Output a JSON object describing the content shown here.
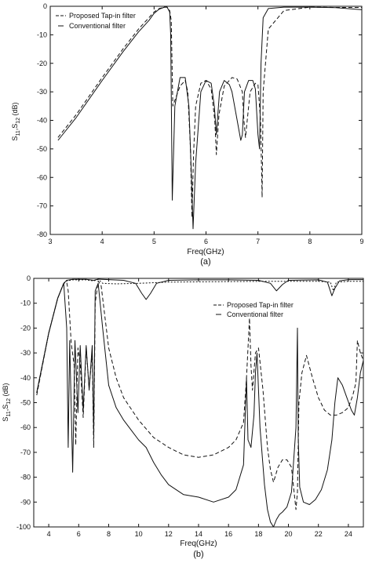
{
  "chart_data": [
    {
      "type": "line",
      "caption": "(a)",
      "xlabel": "Freq(GHz)",
      "ylabel_main": "S",
      "ylabel_sub1": "11",
      "ylabel_sep": ",S",
      "ylabel_sub2": "12",
      "ylabel_unit": " (dB)",
      "xlim": [
        3,
        9
      ],
      "ylim": [
        -80,
        0
      ],
      "xticks": [
        3,
        4,
        5,
        6,
        7,
        8,
        9
      ],
      "yticks": [
        0,
        -10,
        -20,
        -30,
        -40,
        -50,
        -60,
        -70,
        -80
      ],
      "legend_position": "top-left",
      "series": [
        {
          "name": "Proposed Tap-in filter",
          "style": "dashed",
          "x": [
            3.15,
            3.5,
            4.0,
            4.4,
            4.7,
            4.9,
            5.0,
            5.1,
            5.2,
            5.25,
            5.3,
            5.33,
            5.36,
            5.4,
            5.5,
            5.6,
            5.65,
            5.7,
            5.73,
            5.76,
            5.8,
            5.9,
            6.0,
            6.1,
            6.17,
            6.2,
            6.25,
            6.35,
            6.5,
            6.6,
            6.7,
            6.73,
            6.76,
            6.85,
            6.95,
            7.0,
            7.05,
            7.08,
            7.1,
            7.2,
            7.5,
            8.0,
            8.5,
            9.0
          ],
          "y": [
            -46,
            -38,
            -25,
            -15,
            -8,
            -4,
            -2,
            -0.8,
            -0.3,
            -0.3,
            -1.5,
            -5,
            -35,
            -33,
            -28,
            -26,
            -30,
            -50,
            -74,
            -52,
            -35,
            -27,
            -26,
            -29,
            -40,
            -52,
            -38,
            -28,
            -25,
            -25.5,
            -30,
            -40,
            -46,
            -30,
            -27,
            -27.5,
            -40,
            -67,
            -30,
            -8,
            -1.5,
            -0.3,
            -0.4,
            -0.4
          ]
        },
        {
          "name": "Conventional filter",
          "style": "solid",
          "x": [
            3.15,
            3.5,
            4.0,
            4.4,
            4.7,
            4.9,
            5.0,
            5.1,
            5.2,
            5.25,
            5.3,
            5.32,
            5.35,
            5.4,
            5.5,
            5.6,
            5.67,
            5.72,
            5.75,
            5.8,
            5.9,
            6.0,
            6.1,
            6.16,
            6.2,
            6.26,
            6.35,
            6.45,
            6.5,
            6.6,
            6.67,
            6.7,
            6.74,
            6.82,
            6.9,
            6.95,
            7.0,
            7.03,
            7.06,
            7.1,
            7.2,
            7.5,
            8.0,
            8.5,
            9.0
          ],
          "y": [
            -47,
            -39,
            -26,
            -16,
            -9,
            -5,
            -2.5,
            -1,
            -0.3,
            -0.3,
            -2,
            -10,
            -68,
            -35,
            -25,
            -25,
            -35,
            -60,
            -78,
            -55,
            -30,
            -26,
            -27,
            -35,
            -45,
            -30,
            -26,
            -27.5,
            -30,
            -40,
            -47,
            -45,
            -30,
            -26,
            -26,
            -29,
            -45,
            -50,
            -20,
            -4,
            -0.8,
            -0.3,
            -0.3,
            -0.5,
            -1.2
          ]
        }
      ]
    },
    {
      "type": "line",
      "caption": "(b)",
      "xlabel": "Freq(GHz)",
      "ylabel_main": "S",
      "ylabel_sub1": "11",
      "ylabel_sep": ",S",
      "ylabel_sub2": "12",
      "ylabel_unit": " (dB)",
      "xlim": [
        3,
        25
      ],
      "ylim": [
        -100,
        0
      ],
      "xticks": [
        4,
        6,
        8,
        10,
        12,
        14,
        16,
        18,
        20,
        22,
        24
      ],
      "yticks": [
        0,
        -10,
        -20,
        -30,
        -40,
        -50,
        -60,
        -70,
        -80,
        -90,
        -100
      ],
      "legend_position": "top-right",
      "series": [
        {
          "name": "Proposed Tap-in filter",
          "style": "dashed",
          "x": [
            3.2,
            4.0,
            4.6,
            5.0,
            5.2,
            5.3,
            5.5,
            5.7,
            5.8,
            5.95,
            6.1,
            6.3,
            6.5,
            6.7,
            6.9,
            7.0,
            7.1,
            7.3,
            7.5,
            8.0,
            8.5,
            9.0,
            10.0,
            11.0,
            12.0,
            13.0,
            14.0,
            15.0,
            16.0,
            16.5,
            17.0,
            17.2,
            17.4,
            17.5,
            17.6,
            17.8,
            18.0,
            18.3,
            18.6,
            18.8,
            19.0,
            19.3,
            19.6,
            19.9,
            20.2,
            20.5,
            20.6,
            20.7,
            20.9,
            21.2,
            21.6,
            22.0,
            22.4,
            22.8,
            23.2,
            23.6,
            24.0,
            24.3,
            24.5,
            24.6,
            24.8,
            25.0
          ],
          "y": [
            -47,
            -22,
            -8,
            -2,
            -1.5,
            -5,
            -26,
            -35,
            -67,
            -28,
            -34,
            -56,
            -28,
            -44,
            -30,
            -68,
            -10,
            -1,
            -3,
            -28,
            -40,
            -48,
            -57,
            -64,
            -68,
            -71,
            -72,
            -71,
            -68,
            -65,
            -58,
            -40,
            -16,
            -35,
            -45,
            -30,
            -28,
            -45,
            -68,
            -77,
            -82,
            -76,
            -73,
            -73,
            -76,
            -93,
            -86,
            -50,
            -38,
            -31,
            -40,
            -48,
            -53,
            -55,
            -55,
            -54,
            -52,
            -47,
            -42,
            -25,
            -30,
            -33
          ]
        },
        {
          "name": "Conventional filter",
          "style": "solid",
          "x": [
            3.2,
            4.0,
            4.6,
            5.0,
            5.2,
            5.3,
            5.4,
            5.6,
            5.75,
            5.95,
            6.1,
            6.3,
            6.5,
            6.7,
            6.9,
            7.0,
            7.1,
            7.3,
            7.6,
            8.0,
            8.5,
            9.0,
            9.5,
            10.0,
            10.5,
            11.0,
            11.5,
            12.0,
            13.0,
            14.0,
            15.0,
            16.0,
            16.5,
            17.0,
            17.2,
            17.3,
            17.5,
            17.7,
            17.8,
            17.9,
            18.1,
            18.4,
            18.6,
            18.8,
            19.0,
            19.2,
            19.4,
            19.6,
            19.9,
            20.2,
            20.5,
            20.6,
            20.65,
            20.75,
            21.0,
            21.4,
            21.8,
            22.2,
            22.6,
            22.9,
            23.1,
            23.3,
            23.6,
            23.9,
            24.2,
            24.4,
            24.6,
            24.8,
            25.0
          ],
          "y": [
            -46,
            -22,
            -8,
            -2,
            -20,
            -68,
            -25,
            -78,
            -25,
            -54,
            -27,
            -53,
            -27,
            -45,
            -27,
            -63,
            -5,
            -2,
            -20,
            -43,
            -52,
            -57,
            -61,
            -65,
            -68,
            -74,
            -79,
            -83,
            -87,
            -88,
            -90,
            -88,
            -85,
            -75,
            -40,
            -65,
            -68,
            -55,
            -38,
            -30,
            -60,
            -83,
            -93,
            -98,
            -100,
            -97,
            -95,
            -94,
            -92,
            -86,
            -60,
            -20,
            -64,
            -84,
            -90,
            -91,
            -89,
            -85,
            -77,
            -65,
            -50,
            -40,
            -43,
            -48,
            -53,
            -55,
            -48,
            -38,
            -33
          ]
        },
        {
          "name": "",
          "style": "dotted",
          "x": [
            3.2,
            4.0,
            4.6,
            5.0,
            5.2,
            5.6,
            6.5,
            7.0,
            7.3,
            7.6,
            8.5,
            10.0,
            12.0,
            14.0,
            16.0,
            18.0,
            20.0,
            22.0,
            22.8,
            23.0,
            23.2,
            24.0,
            25.0
          ],
          "y": [
            -46,
            -22,
            -8,
            -2,
            -1,
            -0.6,
            -0.6,
            -1,
            -0.4,
            -2,
            -2.2,
            -2,
            -1.5,
            -1.4,
            -1.3,
            -1.2,
            -1.2,
            -1.2,
            -1.5,
            -5,
            -1.5,
            -1.2,
            -1.2
          ]
        },
        {
          "name": "",
          "style": "solid",
          "x": [
            3.2,
            4.0,
            4.6,
            5.0,
            5.2,
            5.6,
            6.5,
            7.0,
            7.3,
            8.0,
            9.0,
            9.8,
            10.2,
            10.5,
            10.8,
            11.2,
            12.0,
            14.0,
            16.0,
            18.0,
            18.8,
            19.2,
            19.6,
            20.0,
            22.0,
            22.6,
            22.9,
            23.1,
            23.4,
            24.0,
            25.0
          ],
          "y": [
            -46,
            -22,
            -8,
            -2,
            -0.8,
            -0.4,
            -0.4,
            -0.8,
            -0.3,
            -0.5,
            -0.8,
            -2,
            -6,
            -8.5,
            -6,
            -2,
            -0.8,
            -0.6,
            -0.6,
            -0.8,
            -2,
            -5,
            -2.5,
            -0.8,
            -0.6,
            -1.5,
            -7,
            -4,
            -1,
            -0.5,
            -0.5
          ]
        }
      ]
    }
  ]
}
